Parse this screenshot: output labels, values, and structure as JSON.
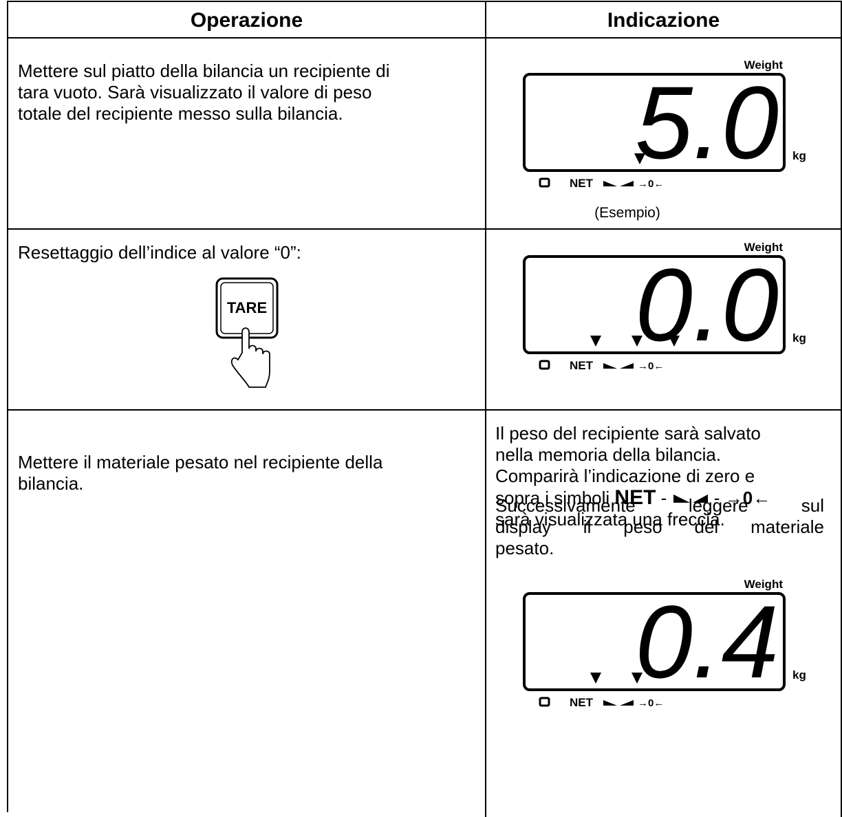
{
  "header": {
    "operation": "Operazione",
    "indication": "Indicazione"
  },
  "rows": [
    {
      "operation": [
        "Mettere sul piatto della bilancia un recipiente di",
        "tara vuoto. Sarà visualizzato il valore di peso",
        "totale del recipiente messo sulla bilancia."
      ],
      "display": {
        "label": "Weight",
        "reading": "5.0",
        "unit": "kg",
        "net": "NET",
        "zero": "→0←"
      },
      "caption": "(Esempio)"
    },
    {
      "operation": [
        "Resettaggio dell’indice al valore “0”:"
      ],
      "key": "TARE",
      "display": {
        "label": "Weight",
        "reading": "0.0",
        "unit": "kg",
        "net": "NET",
        "zero": "→0←"
      },
      "note": {
        "lines": [
          "Il peso del recipiente sarà salvato",
          "nella memoria della bilancia.",
          "Comparirà l’indicazione di zero e",
          "sopra i simboli"
        ],
        "net": "NET",
        "separator": "-",
        "zero": "→0←",
        "closing": "sarà visualizzata una freccia."
      }
    },
    {
      "operation": [
        "Mettere il materiale pesato nel recipiente della",
        "bilancia."
      ],
      "intro": [
        "Successivamente leggere sul",
        "display il peso del materiale",
        "pesato."
      ],
      "display": {
        "label": "Weight",
        "reading": "0.4",
        "unit": "kg",
        "net": "NET",
        "zero": "→0←"
      }
    }
  ]
}
